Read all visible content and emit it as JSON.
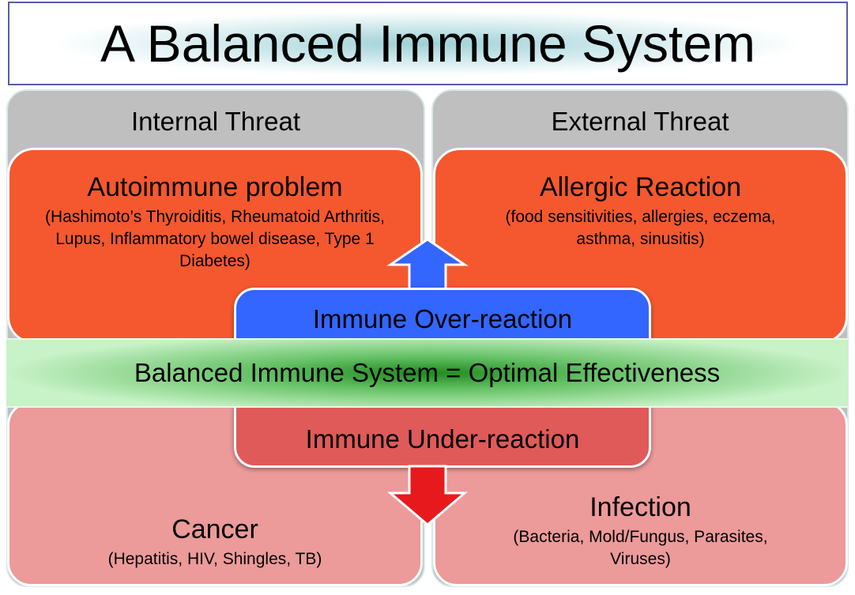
{
  "title": "A Balanced Immune System",
  "internal": {
    "header": "Internal Threat",
    "over": {
      "title": "Autoimmune problem",
      "details": "(Hashimoto’s Thyroiditis, Rheumatoid Arthritis, Lupus, Inflammatory bowel disease, Type 1 Diabetes)"
    },
    "under": {
      "title": "Cancer",
      "details": "(Hepatitis, HIV, Shingles, TB)"
    }
  },
  "external": {
    "header": "External Threat",
    "over": {
      "title": "Allergic Reaction",
      "details": "(food sensitivities, allergies, eczema, asthma, sinusitis)"
    },
    "under": {
      "title": "Infection",
      "details": "(Bacteria, Mold/Fungus, Parasites, Viruses)"
    }
  },
  "over_reaction": "Immune Over-reaction",
  "under_reaction": "Immune Under-reaction",
  "balance": "Balanced Immune System = Optimal Effectiveness",
  "colors": {
    "over": "#3366ff",
    "under": "#e05a5a",
    "threat_over": "#f5582e",
    "threat_under": "#ec9a9a",
    "balance": "#1f8a1f",
    "up_arrow": "#3366ff",
    "down_arrow": "#e8191c"
  }
}
